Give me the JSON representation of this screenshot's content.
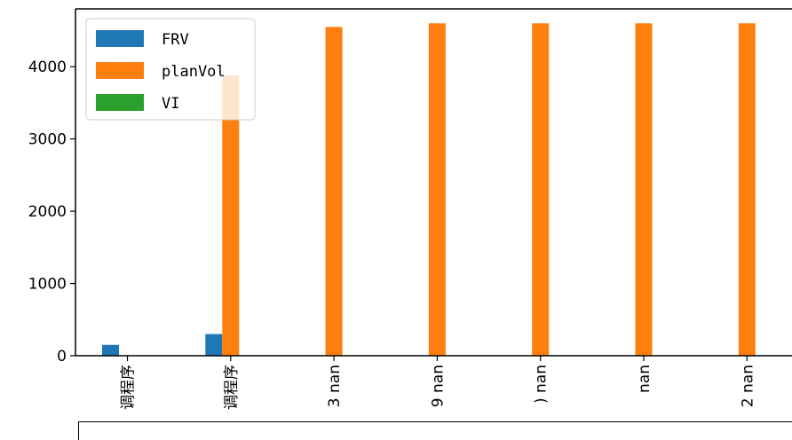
{
  "chart_data": {
    "type": "bar",
    "categories": [
      "调程序",
      "调程序",
      "3 nan",
      "9 nan",
      ") nan",
      "nan",
      "2 nan"
    ],
    "series": [
      {
        "name": "FRV",
        "color": "#1f77b4",
        "values": [
          150,
          300,
          null,
          null,
          null,
          null,
          null
        ]
      },
      {
        "name": "planVol",
        "color": "#ff7f0e",
        "values": [
          null,
          3880,
          4550,
          4600,
          4600,
          4600,
          4600
        ]
      },
      {
        "name": "VI",
        "color": "#2ca02c",
        "values": [
          null,
          null,
          null,
          null,
          null,
          null,
          null
        ]
      }
    ],
    "yticks": [
      "0",
      "1000",
      "2000",
      "3000",
      "4000"
    ],
    "ylim": [
      0,
      4800
    ],
    "grid": false,
    "legend_position": "top-left",
    "title": "",
    "xlabel": "",
    "ylabel": ""
  }
}
